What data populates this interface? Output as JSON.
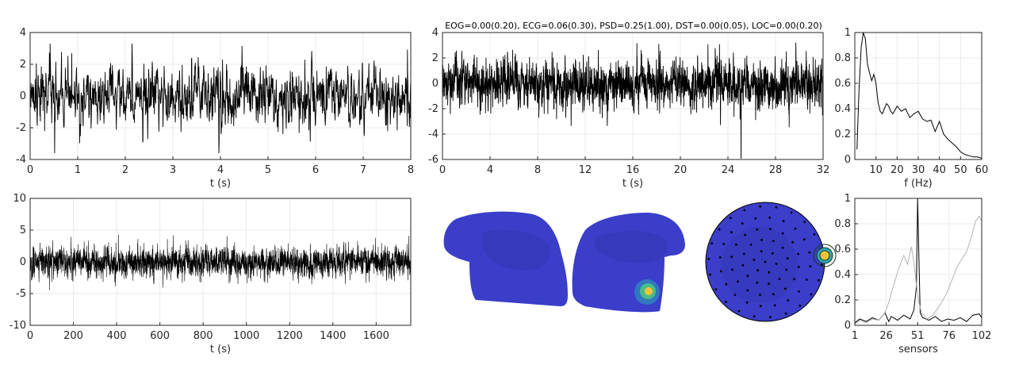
{
  "figure": {
    "title": "EOG=0.00(0.20), ECG=0.06(0.30), PSD=0.25(1.00), DST=0.00(0.05), LOC=0.00(0.20)"
  },
  "colors": {
    "trace": "#000000",
    "trace_light": "#b3b3b3",
    "grid": "#ebebeb",
    "axis": "#262626",
    "head": "#3a3ec8",
    "head_dark": "#3234b0",
    "hotspot": "#f5c23a"
  },
  "chart_data": [
    {
      "id": "signal_8s",
      "type": "line",
      "xlabel": "t (s)",
      "ylabel": "",
      "xlim": [
        0,
        8
      ],
      "ylim": [
        -4,
        4
      ],
      "xticks": [
        0,
        1,
        2,
        3,
        4,
        5,
        6,
        7,
        8
      ],
      "yticks": [
        -4,
        -2,
        0,
        2,
        4
      ],
      "grid": true,
      "n_points": 1600,
      "amplitude_std": 1.0,
      "series": [
        {
          "approx_range": [
            -3.6,
            3.3
          ]
        }
      ]
    },
    {
      "id": "signal_32s",
      "type": "line",
      "xlabel": "t (s)",
      "ylabel": "",
      "xlim": [
        0,
        32
      ],
      "ylim": [
        -6,
        4
      ],
      "xticks": [
        0,
        4,
        8,
        12,
        16,
        20,
        24,
        28,
        32
      ],
      "yticks": [
        -6,
        -4,
        -2,
        0,
        2,
        4
      ],
      "grid": true,
      "n_points": 3200,
      "amplitude_std": 1.0,
      "series": [
        {
          "approx_range": [
            -5.9,
            3.2
          ],
          "notable_dip": {
            "t": 25.1,
            "value": -5.9
          }
        }
      ]
    },
    {
      "id": "psd",
      "type": "line",
      "xlabel": "f (Hz)",
      "ylabel": "",
      "xlim": [
        0,
        60
      ],
      "ylim": [
        0,
        1
      ],
      "xticks": [
        10,
        20,
        30,
        40,
        50,
        60
      ],
      "yticks": [
        0,
        0.2,
        0.4,
        0.6,
        0.8,
        1
      ],
      "grid": true,
      "series": [
        {
          "x": [
            1,
            2,
            3,
            4,
            5,
            6,
            7,
            8,
            9,
            10,
            11,
            12,
            13,
            14,
            15,
            16,
            17,
            18,
            19,
            20,
            22,
            24,
            26,
            28,
            30,
            32,
            34,
            36,
            38,
            40,
            42,
            44,
            46,
            48,
            50,
            52,
            54,
            56,
            58,
            60
          ],
          "y": [
            0.08,
            0.55,
            0.88,
            1.0,
            0.95,
            0.75,
            0.68,
            0.62,
            0.67,
            0.6,
            0.45,
            0.38,
            0.36,
            0.4,
            0.44,
            0.42,
            0.38,
            0.36,
            0.39,
            0.42,
            0.38,
            0.4,
            0.33,
            0.36,
            0.38,
            0.32,
            0.3,
            0.31,
            0.22,
            0.3,
            0.2,
            0.16,
            0.13,
            0.1,
            0.06,
            0.04,
            0.03,
            0.02,
            0.02,
            0.01
          ]
        }
      ]
    },
    {
      "id": "signal_full",
      "type": "line",
      "xlabel": "t (s)",
      "ylabel": "",
      "xlim": [
        0,
        1760
      ],
      "ylim": [
        -10,
        10
      ],
      "xticks": [
        0,
        200,
        400,
        600,
        800,
        1000,
        1200,
        1400,
        1600
      ],
      "yticks": [
        -10,
        -5,
        0,
        5,
        10
      ],
      "grid": true,
      "n_points": 5000,
      "amplitude_std": 1.2,
      "series": [
        {
          "approx_range": [
            -5.5,
            5.2
          ]
        }
      ]
    },
    {
      "id": "sensor_weights",
      "type": "line",
      "xlabel": "sensors",
      "ylabel": "",
      "xlim": [
        1,
        102
      ],
      "ylim": [
        0,
        1
      ],
      "xticks": [
        1,
        26,
        51,
        76,
        102
      ],
      "yticks": [
        0,
        0.2,
        0.4,
        0.6,
        0.8,
        1
      ],
      "grid": true,
      "series": [
        {
          "style": "dark",
          "x": [
            1,
            5,
            10,
            15,
            20,
            25,
            28,
            30,
            35,
            40,
            45,
            48,
            50,
            51,
            52,
            53,
            55,
            60,
            65,
            70,
            75,
            80,
            85,
            90,
            95,
            100,
            102
          ],
          "y": [
            0.02,
            0.05,
            0.03,
            0.06,
            0.04,
            0.1,
            0.03,
            0.07,
            0.04,
            0.08,
            0.05,
            0.12,
            0.3,
            1.0,
            0.55,
            0.1,
            0.06,
            0.04,
            0.07,
            0.03,
            0.05,
            0.04,
            0.06,
            0.03,
            0.08,
            0.09,
            0.06
          ]
        },
        {
          "style": "light",
          "x": [
            1,
            5,
            10,
            15,
            20,
            25,
            28,
            30,
            33,
            36,
            40,
            43,
            46,
            48,
            50,
            52,
            54,
            56,
            58,
            60,
            63,
            66,
            70,
            74,
            78,
            82,
            86,
            90,
            94,
            97,
            100,
            102
          ],
          "y": [
            0.01,
            0.04,
            0.02,
            0.05,
            0.04,
            0.1,
            0.18,
            0.25,
            0.35,
            0.45,
            0.55,
            0.48,
            0.62,
            0.5,
            0.32,
            0.18,
            0.1,
            0.08,
            0.05,
            0.06,
            0.08,
            0.12,
            0.18,
            0.25,
            0.35,
            0.45,
            0.52,
            0.58,
            0.7,
            0.82,
            0.86,
            0.82
          ]
        }
      ]
    }
  ]
}
